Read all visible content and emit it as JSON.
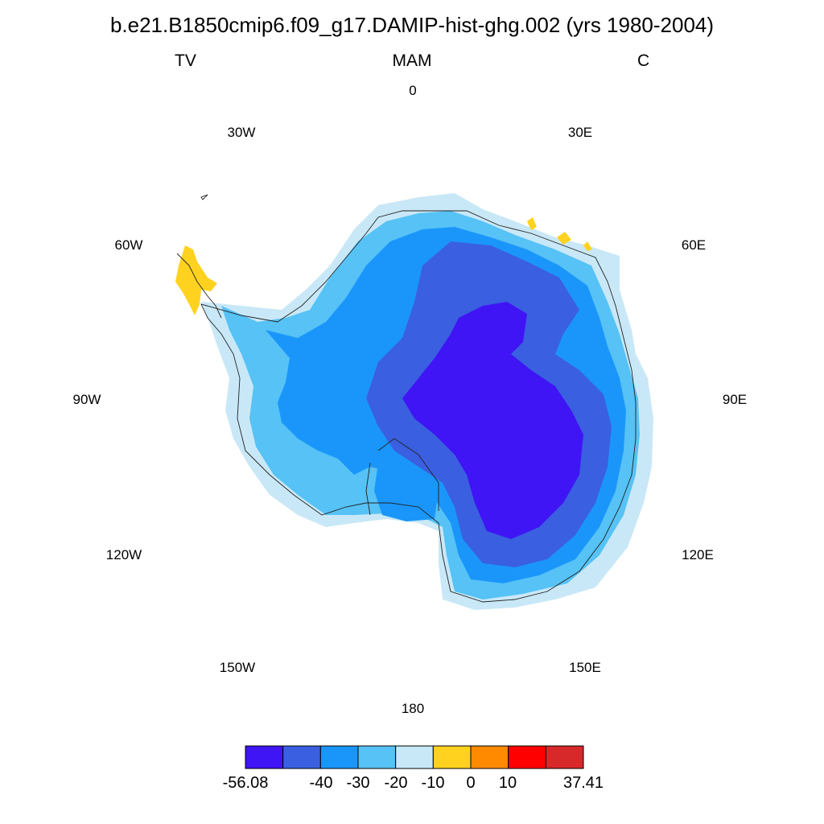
{
  "title": "b.e21.B1850cmip6.f09_g17.DAMIP-hist-ghg.002 (yrs 1980-2004)",
  "subtitle": {
    "left": "TV",
    "center": "MAM",
    "right": "C"
  },
  "longitude_labels": [
    "0",
    "30E",
    "60E",
    "90E",
    "120E",
    "150E",
    "180",
    "150W",
    "120W",
    "90W",
    "60W",
    "30W"
  ],
  "colorbar": {
    "colors": [
      "#3f14f5",
      "#3a5fe0",
      "#1a96fb",
      "#56c2f5",
      "#c9e8f7",
      "#ffd21f",
      "#ff8a00",
      "#ff0000",
      "#d7282a"
    ],
    "labels": [
      "-56.08",
      "-40",
      "-30",
      "-20",
      "-10",
      "0",
      "10",
      "37.41"
    ]
  },
  "map": {
    "projection": "south-polar-stereographic",
    "field": "TV",
    "season": "MAM",
    "units": "C"
  }
}
